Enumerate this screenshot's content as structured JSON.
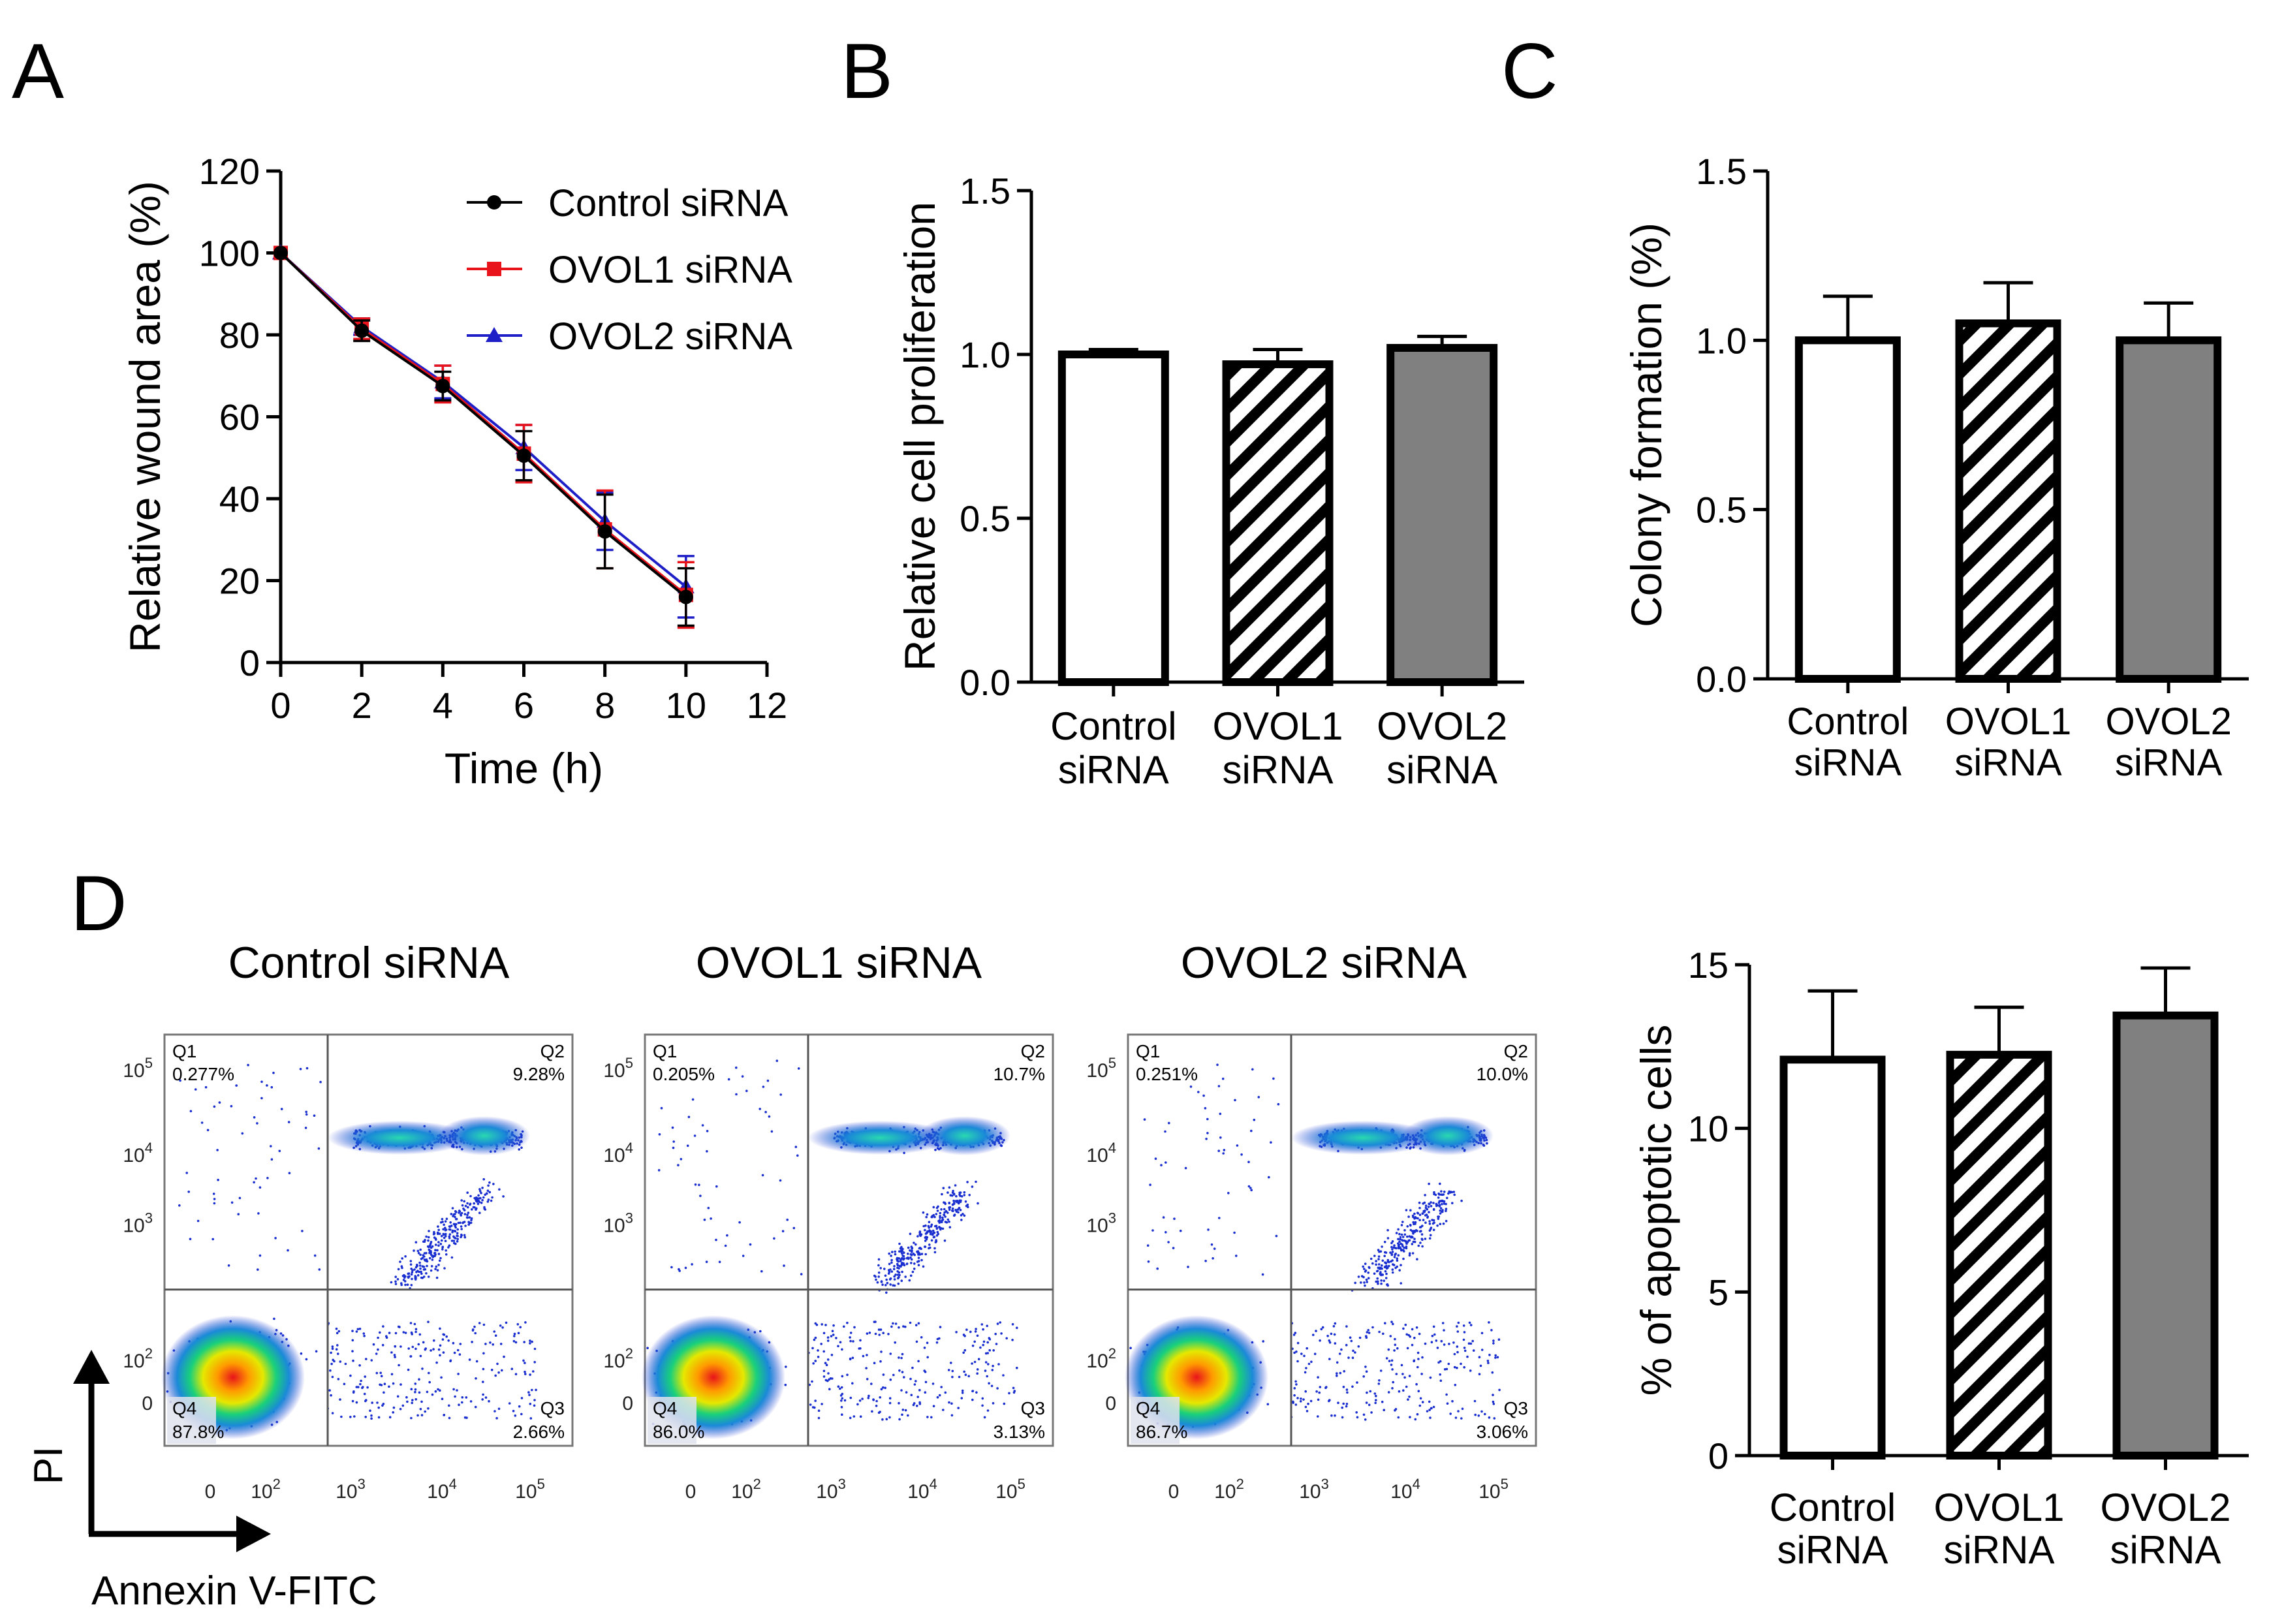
{
  "panel_labels": {
    "a": "A",
    "b": "B",
    "c": "C",
    "d": "D"
  },
  "colors": {
    "control": "#000000",
    "ovol1": "#e8131b",
    "ovol2": "#1f1fc8",
    "grey_bar": "#808080"
  },
  "chart_data": [
    {
      "id": "A",
      "type": "line",
      "xlabel": "Time (h)",
      "ylabel": "Relative wound area (%)",
      "xlim": [
        0,
        12
      ],
      "ylim": [
        0,
        120
      ],
      "xticks": [
        "0",
        "2",
        "4",
        "6",
        "8",
        "10",
        "12"
      ],
      "yticks": [
        "0",
        "20",
        "40",
        "60",
        "80",
        "100",
        "120"
      ],
      "x": [
        0,
        2,
        4,
        6,
        8,
        10
      ],
      "legend_position": "top-right",
      "series": [
        {
          "name": "Control siRNA",
          "marker": "circle",
          "values": [
            100,
            81,
            67.5,
            50.5,
            32,
            16
          ],
          "errors": [
            0,
            2.5,
            3.5,
            6,
            9,
            7
          ]
        },
        {
          "name": "OVOL1 siRNA",
          "marker": "square",
          "values": [
            100,
            81.5,
            68,
            51,
            32.5,
            16.5
          ],
          "errors": [
            0,
            2.5,
            4.5,
            7,
            9.5,
            8
          ]
        },
        {
          "name": "OVOL2 siRNA",
          "marker": "triangle",
          "values": [
            100,
            82,
            68.5,
            52.5,
            34.5,
            18.5
          ],
          "errors": [
            0,
            2,
            4,
            5.5,
            7,
            7.5
          ]
        }
      ]
    },
    {
      "id": "B",
      "type": "bar",
      "ylabel": "Relative cell proliferation",
      "ylim": [
        0,
        1.5
      ],
      "yticks": [
        "0.0",
        "0.5",
        "1.0",
        "1.5"
      ],
      "categories": [
        [
          "Control",
          "siRNA"
        ],
        [
          "OVOL1",
          "siRNA"
        ],
        [
          "OVOL2",
          "siRNA"
        ]
      ],
      "values": [
        1.0,
        0.97,
        1.02
      ],
      "errors": [
        0.015,
        0.045,
        0.035
      ],
      "fills": [
        "white",
        "hatch",
        "grey"
      ]
    },
    {
      "id": "C",
      "type": "bar",
      "ylabel": "Colony formation (%)",
      "ylim": [
        0,
        1.5
      ],
      "yticks": [
        "0.0",
        "0.5",
        "1.0",
        "1.5"
      ],
      "categories": [
        [
          "Control",
          "siRNA"
        ],
        [
          "OVOL1",
          "siRNA"
        ],
        [
          "OVOL2",
          "siRNA"
        ]
      ],
      "values": [
        1.0,
        1.05,
        1.0
      ],
      "errors": [
        0.13,
        0.12,
        0.11
      ],
      "fills": [
        "white",
        "hatch",
        "grey"
      ]
    },
    {
      "id": "D-bar",
      "type": "bar",
      "ylabel": "% of apoptotic cells",
      "ylim": [
        0,
        15
      ],
      "yticks": [
        "0",
        "5",
        "10",
        "15"
      ],
      "categories": [
        [
          "Control",
          "siRNA"
        ],
        [
          "OVOL1",
          "siRNA"
        ],
        [
          "OVOL2",
          "siRNA"
        ]
      ],
      "values": [
        12.1,
        12.25,
        13.45
      ],
      "errors": [
        2.1,
        1.45,
        1.45
      ],
      "fills": [
        "white",
        "hatch",
        "grey"
      ]
    }
  ],
  "flow_cytometry": {
    "x_axis_label": "Annexin V-FITC",
    "y_axis_label": "PI",
    "x_ticks": [
      "0",
      "10",
      "10",
      "10",
      "10"
    ],
    "x_tick_exponents": [
      "",
      "2",
      "3",
      "4",
      "5"
    ],
    "y_ticks": [
      "0",
      "10",
      "10",
      "10",
      "10"
    ],
    "y_tick_exponents": [
      "",
      "2",
      "3",
      "4",
      "5"
    ],
    "panels": [
      {
        "title": "Control  siRNA",
        "q1_label": "Q1",
        "q1": "0.277%",
        "q2_label": "Q2",
        "q2": "9.28%",
        "q3_label": "Q3",
        "q3": "2.66%",
        "q4_label": "Q4",
        "q4": "87.8%"
      },
      {
        "title": "OVOL1 siRNA",
        "q1_label": "Q1",
        "q1": "0.205%",
        "q2_label": "Q2",
        "q2": "10.7%",
        "q3_label": "Q3",
        "q3": "3.13%",
        "q4_label": "Q4",
        "q4": "86.0%"
      },
      {
        "title": "OVOL2 siRNA",
        "q1_label": "Q1",
        "q1": "0.251%",
        "q2_label": "Q2",
        "q2": "10.0%",
        "q3_label": "Q3",
        "q3": "3.06%",
        "q4_label": "Q4",
        "q4": "86.7%"
      }
    ]
  }
}
